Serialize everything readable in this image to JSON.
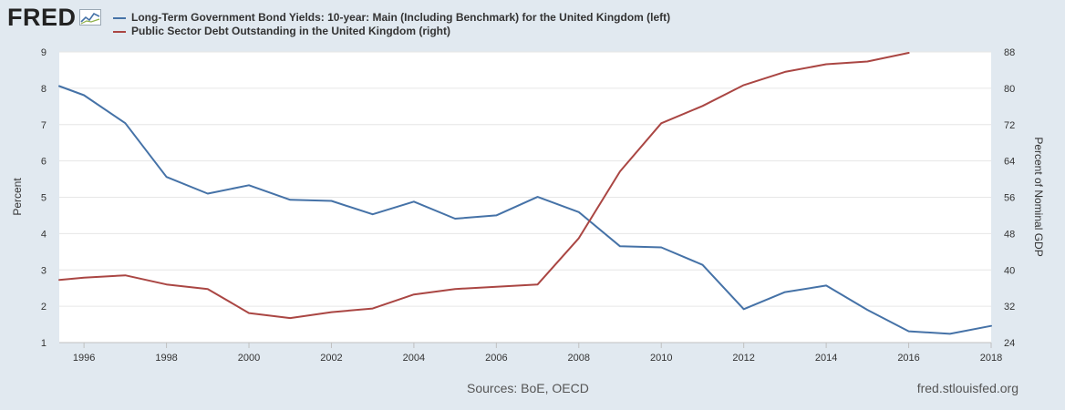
{
  "brand": {
    "name": "FRED"
  },
  "legend": [
    {
      "label": "Long-Term Government Bond Yields: 10-year: Main (Including Benchmark) for the United Kingdom (left)",
      "color": "#4572a7"
    },
    {
      "label": "Public Sector Debt Outstanding in the United Kingdom (right)",
      "color": "#aa4643"
    }
  ],
  "footer": {
    "sources": "Sources: BoE, OECD",
    "site": "fred.stlouisfed.org"
  },
  "chart_data": {
    "type": "line",
    "ylabel": "Percent",
    "y2label": "Percent of Nominal GDP",
    "xlim": [
      1995.4,
      2018
    ],
    "ylim": [
      1,
      9
    ],
    "y2lim": [
      24,
      88
    ],
    "x_ticks": [
      "1996",
      "1998",
      "2000",
      "2002",
      "2004",
      "2006",
      "2008",
      "2010",
      "2012",
      "2014",
      "2016",
      "2018"
    ],
    "y_ticks": [
      "1",
      "2",
      "3",
      "4",
      "5",
      "6",
      "7",
      "8",
      "9"
    ],
    "y2_ticks": [
      "24",
      "32",
      "40",
      "48",
      "56",
      "64",
      "72",
      "80",
      "88"
    ],
    "grid": true,
    "legend_position": "top-left",
    "series": [
      {
        "name": "Long-Term Government Bond Yields: 10-year: Main (Including Benchmark) for the United Kingdom (left)",
        "axis": "left",
        "color": "#4572a7",
        "x": [
          1995.4,
          1996,
          1997,
          1998,
          1999,
          2000,
          2001,
          2002,
          2003,
          2004,
          2005,
          2006,
          2007,
          2008,
          2009,
          2010,
          2011,
          2012,
          2013,
          2014,
          2015,
          2016,
          2017,
          2018
        ],
        "y": [
          8.06,
          7.81,
          7.04,
          5.56,
          5.1,
          5.33,
          4.93,
          4.9,
          4.53,
          4.88,
          4.41,
          4.5,
          5.01,
          4.59,
          3.65,
          3.62,
          3.14,
          1.92,
          2.39,
          2.57,
          1.9,
          1.31,
          1.24,
          1.46
        ]
      },
      {
        "name": "Public Sector Debt Outstanding in the United Kingdom (right)",
        "axis": "right",
        "color": "#aa4643",
        "x": [
          1995.4,
          1996,
          1997,
          1998,
          1999,
          2000,
          2001,
          2002,
          2003,
          2004,
          2005,
          2006,
          2007,
          2008,
          2009,
          2010,
          2011,
          2012,
          2013,
          2014,
          2015,
          2016
        ],
        "y": [
          37.8,
          38.3,
          38.8,
          36.8,
          35.8,
          30.5,
          29.4,
          30.7,
          31.5,
          34.6,
          35.8,
          36.3,
          36.8,
          47.0,
          61.7,
          72.3,
          76.1,
          80.7,
          83.6,
          85.3,
          85.9,
          87.8
        ]
      }
    ]
  }
}
